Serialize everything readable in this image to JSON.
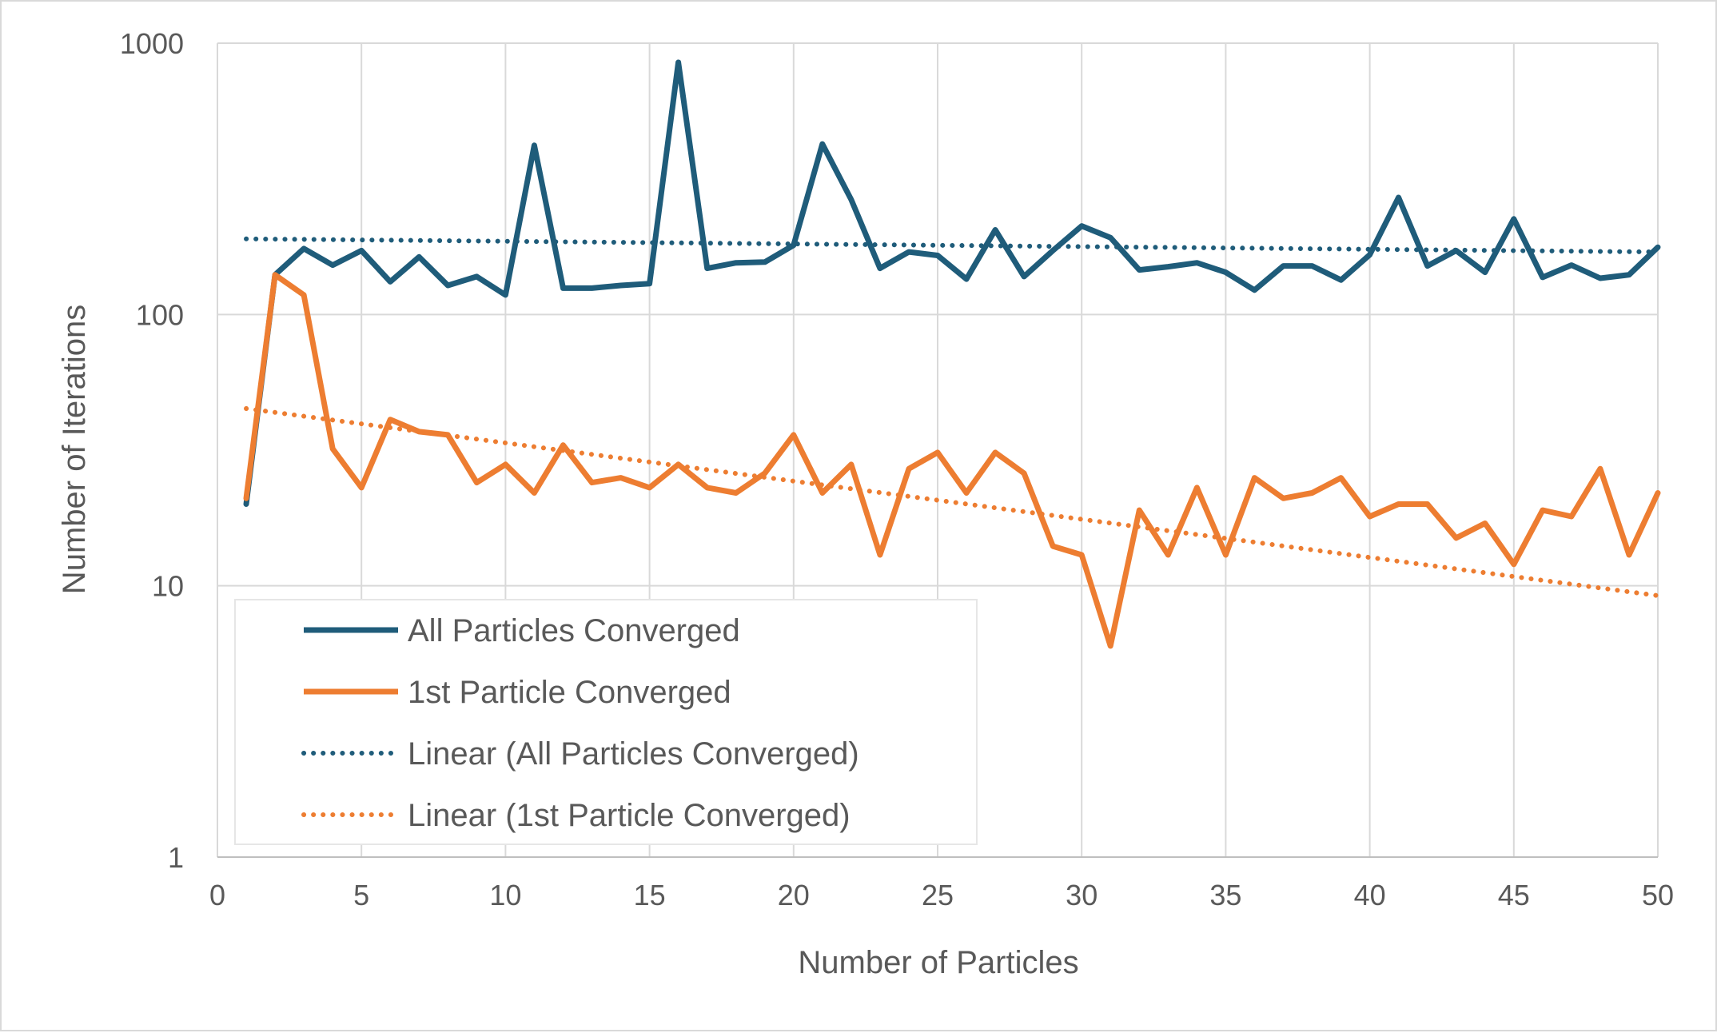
{
  "chart_data": {
    "type": "line",
    "xlabel": "Number of Particles",
    "ylabel": "Number of Iterations",
    "xlim": [
      0,
      50
    ],
    "ylim": [
      1,
      1000
    ],
    "yscale": "log",
    "x_ticks": [
      "0",
      "5",
      "10",
      "15",
      "20",
      "25",
      "30",
      "35",
      "40",
      "45",
      "50"
    ],
    "y_ticks": [
      "1",
      "10",
      "100",
      "1000"
    ],
    "grid": true,
    "legend_position": "bottom-left",
    "x": [
      1,
      2,
      3,
      4,
      5,
      6,
      7,
      8,
      9,
      10,
      11,
      12,
      13,
      14,
      15,
      16,
      17,
      18,
      19,
      20,
      21,
      22,
      23,
      24,
      25,
      26,
      27,
      28,
      29,
      30,
      31,
      32,
      33,
      34,
      35,
      36,
      37,
      38,
      39,
      40,
      41,
      42,
      43,
      44,
      45,
      46,
      47,
      48,
      49,
      50
    ],
    "series": [
      {
        "name": "All Particles Converged",
        "color": "#1f5c7a",
        "style": "solid",
        "values": [
          20,
          140,
          175,
          152,
          172,
          132,
          163,
          128,
          138,
          118,
          420,
          125,
          125,
          128,
          130,
          850,
          148,
          155,
          156,
          180,
          425,
          265,
          148,
          170,
          165,
          135,
          205,
          138,
          172,
          212,
          192,
          146,
          150,
          155,
          143,
          123,
          151,
          151,
          134,
          166,
          270,
          151,
          172,
          143,
          225,
          137,
          152,
          136,
          140,
          177
        ]
      },
      {
        "name": "1st Particle Converged",
        "color": "#ed7d31",
        "style": "solid",
        "values": [
          21,
          140,
          118,
          32,
          23,
          41,
          37,
          36,
          24,
          28,
          22,
          33,
          24,
          25,
          23,
          28,
          23,
          22,
          26,
          36,
          22,
          28,
          13,
          27,
          31,
          22,
          31,
          26,
          14,
          13,
          6,
          19,
          13,
          23,
          13,
          25,
          21,
          22,
          25,
          18,
          20,
          20,
          15,
          17,
          12,
          19,
          18,
          27,
          13,
          22
        ]
      },
      {
        "name": "Linear (All Particles Converged)",
        "color": "#1f5c7a",
        "style": "dotted",
        "start": 190,
        "end": 170
      },
      {
        "name": "Linear (1st Particle Converged)",
        "color": "#ed7d31",
        "style": "dotted",
        "start": 45,
        "end": 9.2
      }
    ]
  }
}
